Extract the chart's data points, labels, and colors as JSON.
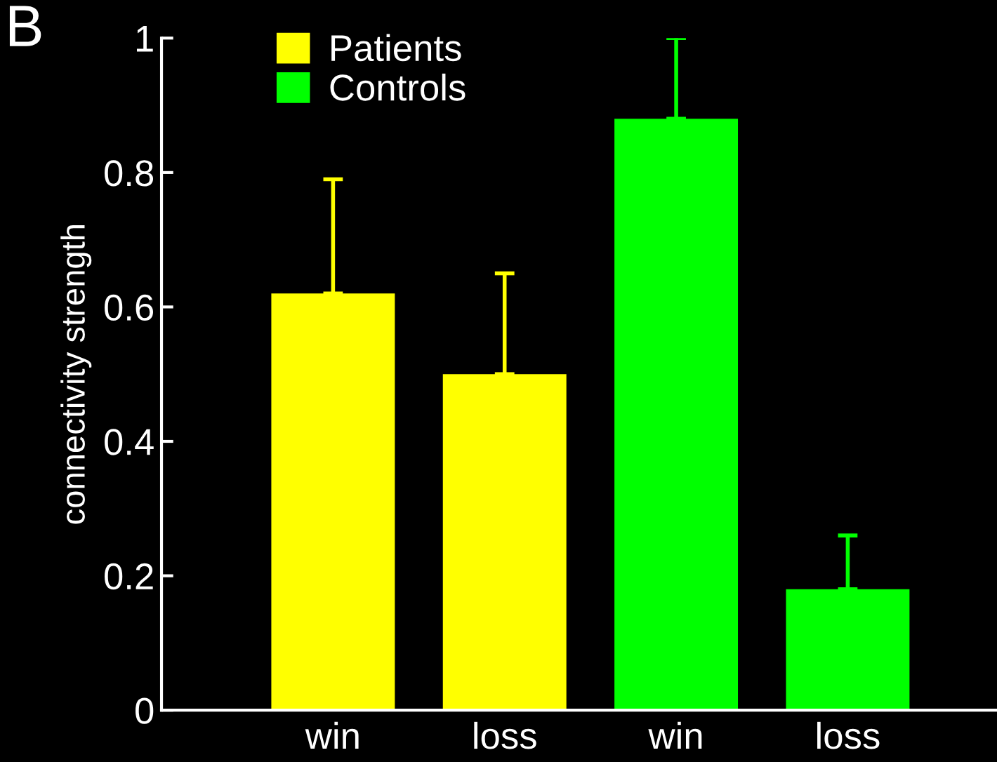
{
  "chart_data": {
    "type": "bar",
    "categories": [
      "win",
      "loss",
      "win",
      "loss"
    ],
    "ylabel": "connectivity strength",
    "ylim": [
      0,
      1
    ],
    "yticks": [
      0,
      0.2,
      0.4,
      0.6,
      0.8,
      1
    ],
    "series": [
      {
        "name": "Patients",
        "color": "#ffff00",
        "values": [
          0.62,
          0.5,
          null,
          null
        ],
        "errors": [
          [
            0.62,
            0.79
          ],
          [
            0.5,
            0.65
          ],
          null,
          null
        ]
      },
      {
        "name": "Controls",
        "color": "#00ff00",
        "values": [
          null,
          null,
          0.88,
          0.18
        ],
        "errors": [
          null,
          null,
          [
            0.88,
            1.0
          ],
          [
            0.18,
            0.26
          ]
        ]
      }
    ],
    "annotations": [
      "B"
    ],
    "legend": "top left",
    "grid": false
  }
}
